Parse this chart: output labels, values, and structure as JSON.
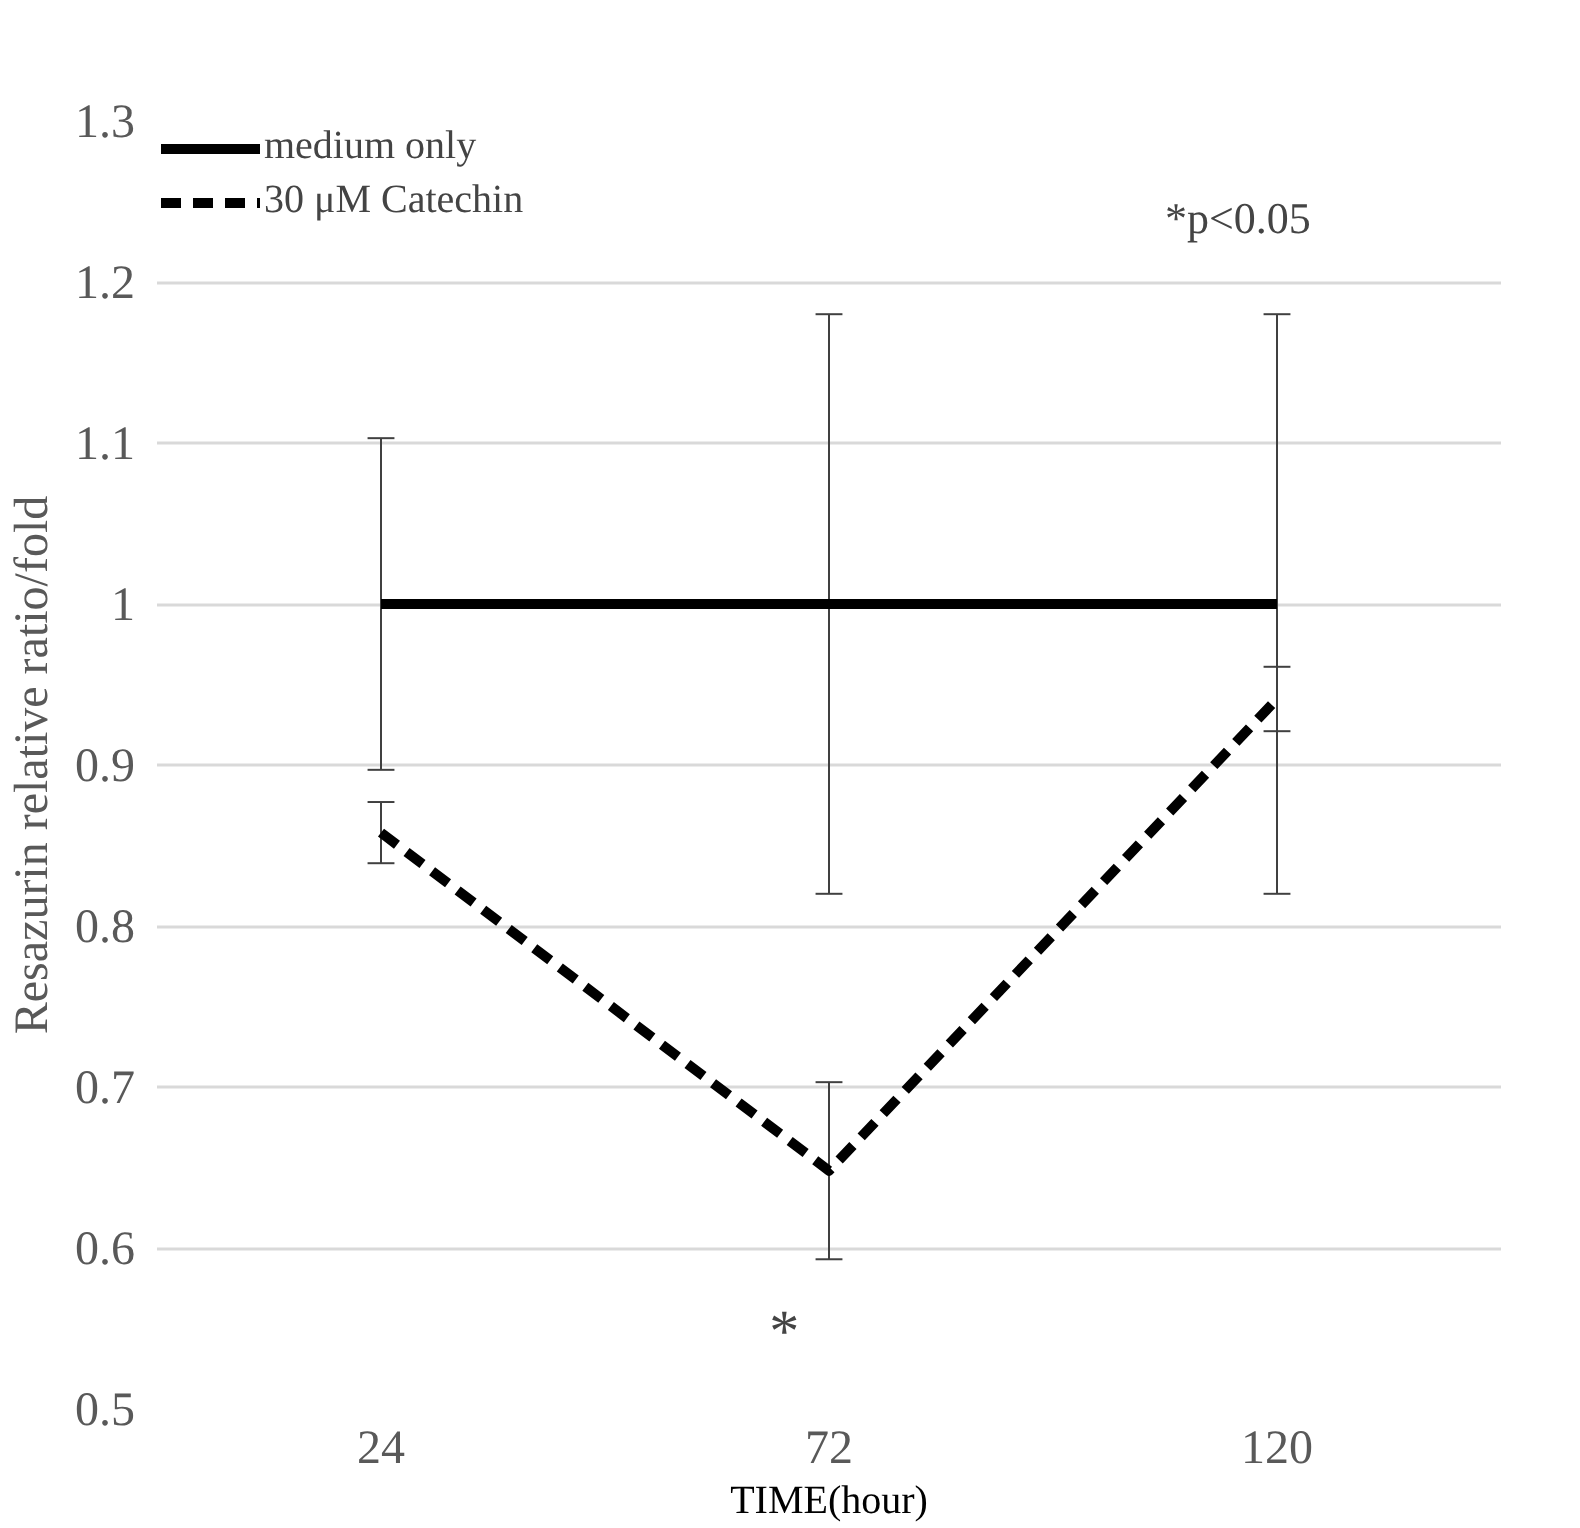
{
  "chart_data": {
    "type": "line",
    "xlabel": "TIME(hour)",
    "ylabel": "Resazurin relative ratio/fold",
    "categories": [
      "24",
      "72",
      "120"
    ],
    "series": [
      {
        "name": "medium only",
        "color": "#000000",
        "line_style": "solid",
        "values": [
          1.0,
          1.0,
          1.0
        ],
        "errors": [
          0.103,
          0.18,
          0.18
        ]
      },
      {
        "name": "30 μM Catechin",
        "color": "#000000",
        "line_style": "dashed",
        "values": [
          0.858,
          0.648,
          0.941
        ],
        "errors": [
          0.019,
          0.055,
          0.02
        ]
      }
    ],
    "ylim": [
      0.5,
      1.3
    ],
    "yticks": [
      0.5,
      0.6,
      0.7,
      0.8,
      0.9,
      {
        "value": 1.0,
        "label": "1"
      },
      1.1,
      1.2,
      1.3
    ],
    "grid": "y",
    "legend": "top",
    "marker": "none",
    "annotations": [
      "*p<0.05",
      "*"
    ]
  }
}
